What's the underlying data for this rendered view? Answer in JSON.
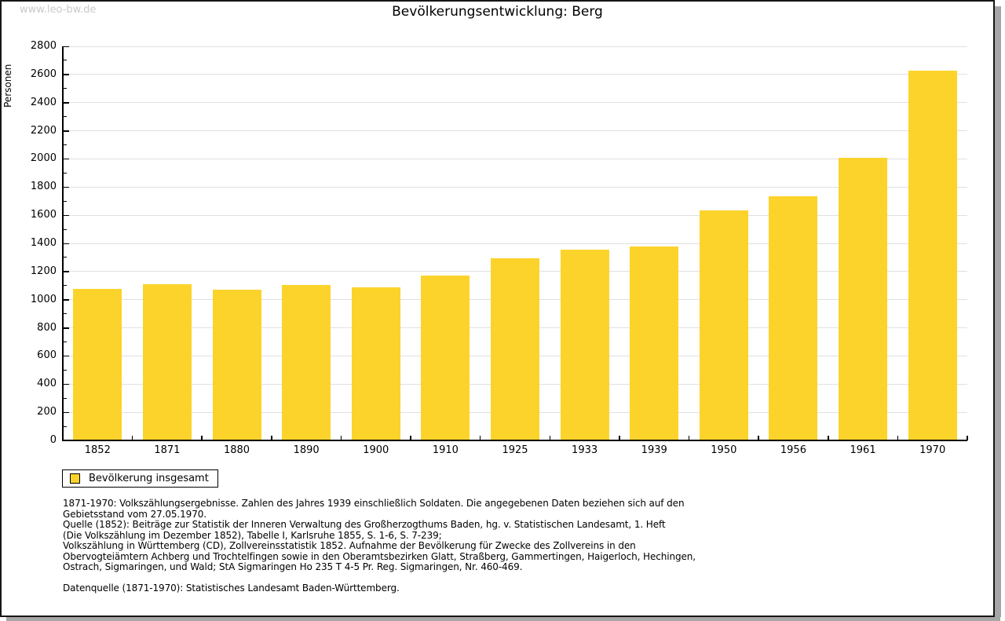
{
  "page": {
    "watermark": "www.leo-bw.de",
    "title": "Bevölkerungsentwicklung: Berg"
  },
  "legend": {
    "label": "Bevölkerung insgesamt"
  },
  "colors": {
    "bar": "#fcd32b",
    "grid": "#e0e0e0",
    "axis": "#000000",
    "watermark": "#c9c9c9",
    "page_border": "#161616",
    "shadow": "#a6a6a6"
  },
  "chart_data": {
    "type": "bar",
    "title": "Bevölkerungsentwicklung: Berg",
    "xlabel": "",
    "ylabel": "Personen",
    "categories": [
      "1852",
      "1871",
      "1880",
      "1890",
      "1900",
      "1910",
      "1925",
      "1933",
      "1939",
      "1950",
      "1956",
      "1961",
      "1970"
    ],
    "values": [
      1075,
      1110,
      1070,
      1105,
      1085,
      1170,
      1295,
      1355,
      1375,
      1635,
      1735,
      2010,
      2625
    ],
    "series_name": "Bevölkerung insgesamt",
    "ylim": [
      0,
      2800
    ],
    "ytick_step": 200,
    "yminor_step": 100,
    "grid": true,
    "legend_position": "bottom-left",
    "bar_color": "#fcd32b"
  },
  "footnotes": {
    "lines": [
      "1871-1970: Volkszählungsergebnisse. Zahlen des Jahres 1939 einschließlich Soldaten. Die angegebenen Daten beziehen sich auf den",
      "Gebietsstand vom 27.05.1970.",
      "Quelle (1852): Beiträge zur Statistik der Inneren Verwaltung des Großherzogthums Baden, hg. v. Statistischen Landesamt, 1. Heft",
      "(Die Volkszählung im Dezember 1852), Tabelle I, Karlsruhe 1855, S. 1-6, S. 7-239;",
      "Volkszählung in Württemberg (CD), Zollvereinsstatistik 1852. Aufnahme der Bevölkerung für Zwecke des Zollvereins in den",
      "Obervogteiämtern Achberg und Trochtelfingen sowie in den Oberamtsbezirken Glatt, Straßberg, Gammertingen, Haigerloch, Hechingen,",
      "Ostrach, Sigmaringen, und Wald; StA Sigmaringen Ho 235 T 4-5 Pr. Reg. Sigmaringen, Nr. 460-469."
    ],
    "datasource": "Datenquelle (1871-1970): Statistisches Landesamt Baden-Württemberg."
  }
}
